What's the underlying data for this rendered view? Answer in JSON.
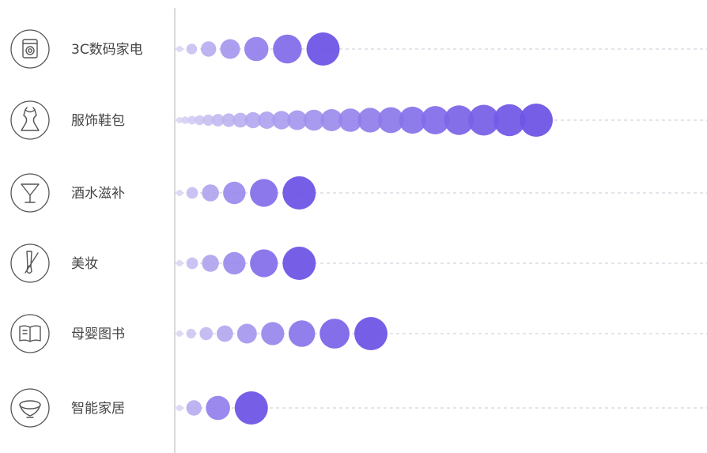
{
  "chart_data": {
    "type": "bubble-row",
    "title": "",
    "xlabel": "",
    "ylabel": "",
    "grid": false,
    "legend": "none",
    "color_light": "#d8d4f4",
    "color_dark": "#6f55e6",
    "categories": [
      {
        "label": "3C数码家电",
        "icon": "washing-machine-icon",
        "bubble_count": 7
      },
      {
        "label": "服饰鞋包",
        "icon": "dress-icon",
        "bubble_count": 23
      },
      {
        "label": "酒水滋补",
        "icon": "cocktail-glass-icon",
        "bubble_count": 6
      },
      {
        "label": "美妆",
        "icon": "makeup-brush-icon",
        "bubble_count": 6
      },
      {
        "label": "母婴图书",
        "icon": "open-book-icon",
        "bubble_count": 9
      },
      {
        "label": "智能家居",
        "icon": "ceiling-lamp-icon",
        "bubble_count": 4
      }
    ]
  }
}
